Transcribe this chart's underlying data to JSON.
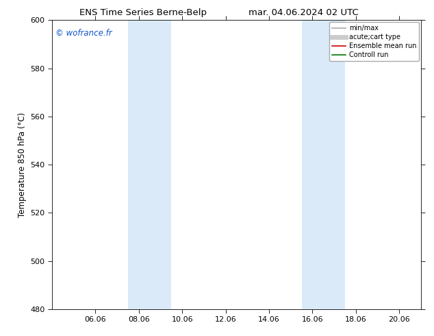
{
  "title_left": "ENS Time Series Berne-Belp",
  "title_right": "mar. 04.06.2024 02 UTC",
  "ylabel": "Temperature 850 hPa (°C)",
  "ylim": [
    480,
    600
  ],
  "yticks": [
    480,
    500,
    520,
    540,
    560,
    580,
    600
  ],
  "xtick_labels": [
    "06.06",
    "08.06",
    "10.06",
    "12.06",
    "14.06",
    "16.06",
    "18.06",
    "20.06"
  ],
  "xtick_positions": [
    2,
    4,
    6,
    8,
    10,
    12,
    14,
    16
  ],
  "xlim": [
    0,
    17
  ],
  "shaded_bands": [
    {
      "x_start": 3.5,
      "x_end": 5.5
    },
    {
      "x_start": 11.5,
      "x_end": 13.5
    }
  ],
  "shaded_color": "#daeaf8",
  "watermark_text": "© wofrance.fr",
  "watermark_color": "#1155cc",
  "legend_entries": [
    {
      "label": "min/max",
      "color": "#aaaaaa",
      "linestyle": "-",
      "linewidth": 1.2,
      "kind": "line"
    },
    {
      "label": "acute;cart type",
      "color": "#cccccc",
      "linestyle": "-",
      "linewidth": 5,
      "kind": "line"
    },
    {
      "label": "Ensemble mean run",
      "color": "#cc0000",
      "linestyle": "-",
      "linewidth": 1.2,
      "kind": "line"
    },
    {
      "label": "Controll run",
      "color": "#007700",
      "linestyle": "-",
      "linewidth": 1.2,
      "kind": "line"
    }
  ],
  "background_color": "#ffffff",
  "title_fontsize": 9.5,
  "ylabel_fontsize": 8.5,
  "tick_fontsize": 8,
  "legend_fontsize": 7,
  "watermark_fontsize": 8.5
}
